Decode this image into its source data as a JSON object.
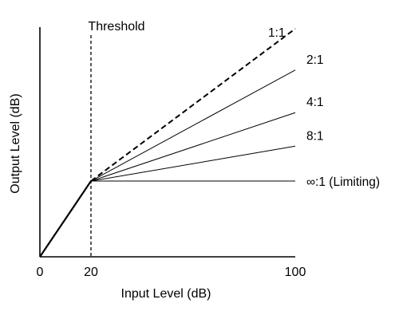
{
  "chart_data": {
    "type": "line",
    "title": "",
    "xlabel": "Input Level (dB)",
    "ylabel": "Output Level (dB)",
    "xlim": [
      0,
      100
    ],
    "ylim": [
      0,
      100
    ],
    "grid": false,
    "legend": "none",
    "x_ticks": [
      0,
      20,
      100
    ],
    "x_tick_labels": [
      "0",
      "20",
      "100"
    ],
    "threshold": {
      "x": 20,
      "label": "Threshold"
    },
    "series": [
      {
        "name": "1:1",
        "ratio": 1,
        "x": [
          20,
          100
        ],
        "y": [
          33.2,
          100
        ],
        "style": "dashed"
      },
      {
        "name": "2:1",
        "ratio": 2,
        "x": [
          20,
          100
        ],
        "y": [
          33.2,
          81.9
        ],
        "style": "solid"
      },
      {
        "name": "4:1",
        "ratio": 4,
        "x": [
          20,
          100
        ],
        "y": [
          33.2,
          63.2
        ],
        "style": "solid"
      },
      {
        "name": "8:1",
        "ratio": 8,
        "x": [
          20,
          100
        ],
        "y": [
          33.2,
          48.5
        ],
        "style": "solid"
      },
      {
        "name": "∞:1 (Limiting)",
        "ratio": null,
        "x": [
          20,
          100
        ],
        "y": [
          33.2,
          33.2
        ],
        "style": "solid"
      }
    ],
    "below_threshold": {
      "x": [
        0,
        20
      ],
      "y": [
        0,
        33.2
      ],
      "style": "bold"
    }
  }
}
